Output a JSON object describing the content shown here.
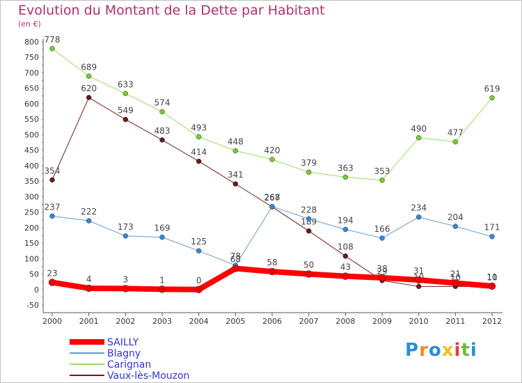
{
  "title": "Evolution du Montant de la Dette par Habitant",
  "unit_label": "(en €)",
  "logo": {
    "text": "Proxiti",
    "letters": [
      {
        "ch": "P",
        "color": "#2a8fd6"
      },
      {
        "ch": "r",
        "color": "#f08a1c"
      },
      {
        "ch": "o",
        "color": "#2a8fd6"
      },
      {
        "ch": "x",
        "color": "#f0c020"
      },
      {
        "ch": "i",
        "color": "#e0403a"
      },
      {
        "ch": "t",
        "color": "#6cbf3c"
      },
      {
        "ch": "i",
        "color": "#2a8fd6"
      }
    ]
  },
  "chart_data": {
    "type": "line",
    "x": [
      "2000",
      "2001",
      "2002",
      "2003",
      "2004",
      "2005",
      "2006",
      "2007",
      "2008",
      "2009",
      "2010",
      "2011",
      "2012"
    ],
    "ylim": [
      -50,
      800
    ],
    "yticks": [
      -50,
      0,
      50,
      100,
      150,
      200,
      250,
      300,
      350,
      400,
      450,
      500,
      550,
      600,
      650,
      700,
      750,
      800
    ],
    "grid": false,
    "legend_position": "bottom-left",
    "series": [
      {
        "name": "Vaux-lès-Mouzon",
        "color": "#6b1a1a",
        "marker": "#6b1a1a",
        "width": 1,
        "values": [
          354,
          620,
          549,
          483,
          414,
          341,
          267,
          189,
          108,
          29,
          10,
          10,
          10
        ],
        "labels": [
          "354",
          "620",
          "549",
          "483",
          "414",
          "341",
          "267",
          "189",
          "108",
          "29",
          "10",
          "10",
          "10"
        ]
      },
      {
        "name": "Carignan",
        "color": "#99dd66",
        "marker": "#77cc33",
        "width": 1,
        "values": [
          778,
          689,
          633,
          574,
          493,
          448,
          420,
          379,
          363,
          353,
          490,
          477,
          619
        ],
        "labels": [
          "778",
          "689",
          "633",
          "574",
          "493",
          "448",
          "420",
          "379",
          "363",
          "353",
          "490",
          "477",
          "619"
        ]
      },
      {
        "name": "Blagny",
        "color": "#6699cc",
        "marker": "#3388dd",
        "width": 1,
        "values": [
          237,
          222,
          173,
          169,
          125,
          78,
          268,
          228,
          194,
          166,
          234,
          204,
          171
        ],
        "labels": [
          "237",
          "222",
          "173",
          "169",
          "125",
          "78",
          "268",
          "228",
          "194",
          "166",
          "234",
          "204",
          "171"
        ]
      },
      {
        "name": "SAILLY",
        "color": "#ff0000",
        "marker": "#ee0000",
        "width": 8,
        "values": [
          23,
          4,
          3,
          1,
          0,
          68,
          58,
          50,
          43,
          38,
          31,
          21,
          11
        ],
        "labels": [
          "23",
          "4",
          "3",
          "1",
          "0",
          "68",
          "58",
          "50",
          "43",
          "38",
          "31",
          "21",
          "11"
        ]
      }
    ],
    "legend_order": [
      "SAILLY",
      "Blagny",
      "Carignan",
      "Vaux-lès-Mouzon"
    ]
  }
}
